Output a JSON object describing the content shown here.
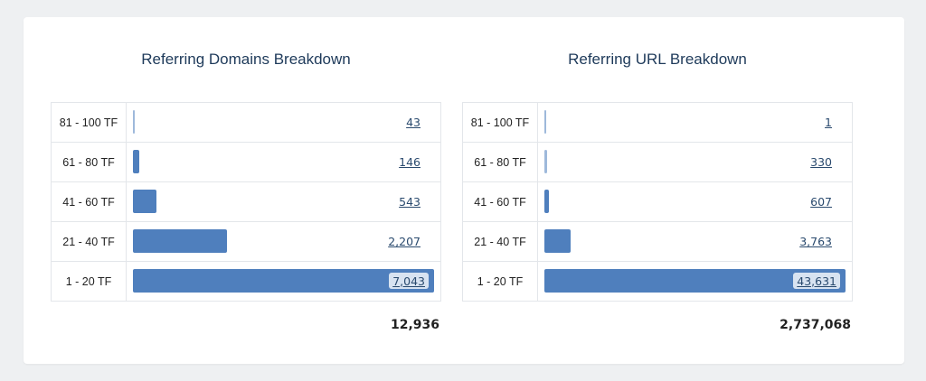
{
  "chart_data": [
    {
      "type": "bar",
      "title": "Referring Domains Breakdown",
      "categories": [
        "81 - 100 TF",
        "61 - 80 TF",
        "41 - 60 TF",
        "21 - 40 TF",
        "1 - 20 TF"
      ],
      "values": [
        43,
        146,
        543,
        2207,
        7043
      ],
      "value_labels": [
        "43",
        "146",
        "543",
        "2,207",
        "7,043"
      ],
      "total": "12,936",
      "color": "#4f7fbd"
    },
    {
      "type": "bar",
      "title": "Referring URL Breakdown",
      "categories": [
        "81 - 100 TF",
        "61 - 80 TF",
        "41 - 60 TF",
        "21 - 40 TF",
        "1 - 20 TF"
      ],
      "values": [
        1,
        330,
        607,
        3763,
        43631
      ],
      "value_labels": [
        "1",
        "330",
        "607",
        "3,763",
        "43,631"
      ],
      "total": "2,737,068",
      "color": "#4f7fbd"
    }
  ]
}
